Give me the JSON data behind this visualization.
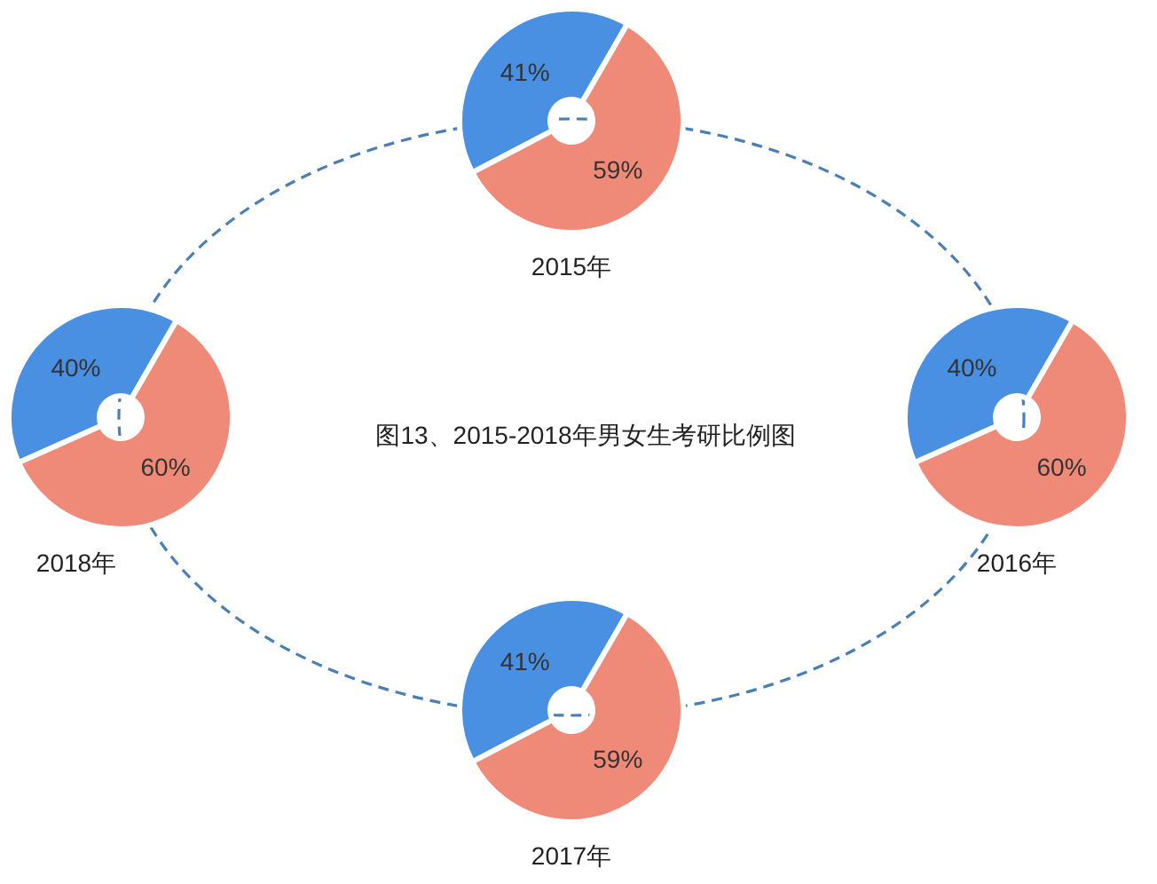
{
  "chart_data": [
    {
      "type": "donut",
      "xlabel": "2015年",
      "categories": [
        null,
        null
      ],
      "values": [
        41,
        59
      ],
      "colors": [
        "#4a90e2",
        "#f08a78"
      ],
      "value_labels": [
        "41%",
        "59%"
      ]
    },
    {
      "type": "donut",
      "xlabel": "2016年",
      "categories": [
        null,
        null
      ],
      "values": [
        40,
        60
      ],
      "colors": [
        "#4a90e2",
        "#f08a78"
      ],
      "value_labels": [
        "40%",
        "60%"
      ]
    },
    {
      "type": "donut",
      "xlabel": "2017年",
      "categories": [
        null,
        null
      ],
      "values": [
        41,
        59
      ],
      "colors": [
        "#4a90e2",
        "#f08a78"
      ],
      "value_labels": [
        "41%",
        "59%"
      ]
    },
    {
      "type": "donut",
      "xlabel": "2018年",
      "categories": [
        null,
        null
      ],
      "values": [
        40,
        60
      ],
      "colors": [
        "#4a90e2",
        "#f08a78"
      ],
      "value_labels": [
        "40%",
        "60%"
      ]
    },
    {
      "type": "other",
      "title": "图13、2015-2018年男女生考研比例图"
    }
  ]
}
